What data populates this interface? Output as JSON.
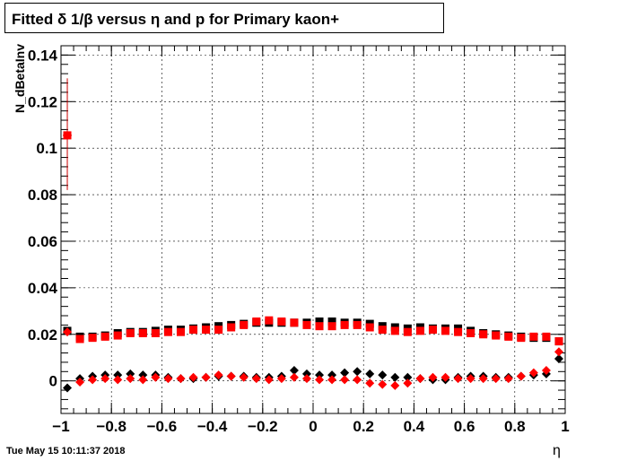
{
  "chart_data": {
    "type": "scatter",
    "title": "Fitted δ 1/β versus η and p for Primary kaon+",
    "xlabel": "η",
    "ylabel": "N_dBetaInv",
    "xlim": [
      -1,
      1
    ],
    "ylim": [
      -0.014,
      0.144
    ],
    "x_ticks": [
      "−1",
      "−0.8",
      "−0.6",
      "−0.4",
      "−0.2",
      "0",
      "0.2",
      "0.4",
      "0.6",
      "0.8",
      "1"
    ],
    "x_tick_values": [
      -1,
      -0.8,
      -0.6,
      -0.4,
      -0.2,
      0,
      0.2,
      0.4,
      0.6,
      0.8,
      1
    ],
    "y_ticks": [
      "0",
      "0.02",
      "0.04",
      "0.06",
      "0.08",
      "0.1",
      "0.12",
      "0.14"
    ],
    "y_tick_values": [
      0,
      0.02,
      0.04,
      0.06,
      0.08,
      0.1,
      0.12,
      0.14
    ],
    "grid": true,
    "x": [
      -0.975,
      -0.925,
      -0.875,
      -0.825,
      -0.775,
      -0.725,
      -0.675,
      -0.625,
      -0.575,
      -0.525,
      -0.475,
      -0.425,
      -0.375,
      -0.325,
      -0.275,
      -0.225,
      -0.175,
      -0.125,
      -0.075,
      -0.025,
      0.025,
      0.075,
      0.125,
      0.175,
      0.225,
      0.275,
      0.325,
      0.375,
      0.425,
      0.475,
      0.525,
      0.575,
      0.625,
      0.675,
      0.725,
      0.775,
      0.825,
      0.875,
      0.925,
      0.975
    ],
    "series": [
      {
        "marker": "square",
        "color": "#000000",
        "values": [
          0.0215,
          0.019,
          0.019,
          0.0195,
          0.0205,
          0.021,
          0.021,
          0.0215,
          0.022,
          0.022,
          0.0225,
          0.023,
          0.0235,
          0.024,
          0.0245,
          0.025,
          0.025,
          0.025,
          0.025,
          0.025,
          0.0255,
          0.0255,
          0.025,
          0.025,
          0.0245,
          0.0235,
          0.023,
          0.0225,
          0.023,
          0.0225,
          0.0225,
          0.0225,
          0.0215,
          0.0205,
          0.02,
          0.0195,
          0.019,
          0.0185,
          0.0185,
          0.017
        ]
      },
      {
        "marker": "square",
        "color": "#ff0000",
        "values": [
          0.1055,
          0.018,
          0.0185,
          0.019,
          0.0195,
          0.0205,
          0.0205,
          0.0205,
          0.021,
          0.021,
          0.022,
          0.022,
          0.022,
          0.023,
          0.024,
          0.0255,
          0.026,
          0.0255,
          0.025,
          0.024,
          0.0235,
          0.0235,
          0.024,
          0.024,
          0.023,
          0.022,
          0.0215,
          0.021,
          0.0215,
          0.022,
          0.0215,
          0.021,
          0.0205,
          0.02,
          0.0195,
          0.019,
          0.0185,
          0.019,
          0.019,
          0.017
        ]
      },
      {
        "marker": "diamond",
        "color": "#000000",
        "values": [
          -0.003,
          0.001,
          0.002,
          0.0025,
          0.0025,
          0.003,
          0.0025,
          0.0025,
          0.0015,
          0.001,
          0.001,
          0.0015,
          0.002,
          0.002,
          0.002,
          0.0015,
          0.0015,
          0.002,
          0.0045,
          0.003,
          0.0025,
          0.0025,
          0.0035,
          0.004,
          0.003,
          0.0025,
          0.0015,
          0.0015,
          0.001,
          0.0005,
          0.0005,
          0.0015,
          0.002,
          0.002,
          0.0015,
          0.0015,
          0.002,
          0.0025,
          0.003,
          0.0095
        ]
      },
      {
        "marker": "diamond",
        "color": "#ff0000",
        "values": [
          0.021,
          -0.0005,
          0.0005,
          0.001,
          0.0005,
          0.001,
          0.0005,
          0.0015,
          0.001,
          0.001,
          0.0015,
          0.0015,
          0.0025,
          0.002,
          0.0015,
          0.001,
          0.0005,
          0.001,
          0.0015,
          0.001,
          0.0005,
          0.0005,
          0.0005,
          0.0005,
          -0.001,
          -0.0015,
          -0.002,
          -0.001,
          0.001,
          0.0015,
          0.0015,
          0.001,
          0.001,
          0.001,
          0.001,
          0.001,
          0.002,
          0.0035,
          0.0045,
          0.0125
        ]
      }
    ],
    "error_bar": {
      "x": -0.975,
      "low": 0.082,
      "high": 0.13
    }
  },
  "footer": "Tue May 15 10:11:37 2018"
}
